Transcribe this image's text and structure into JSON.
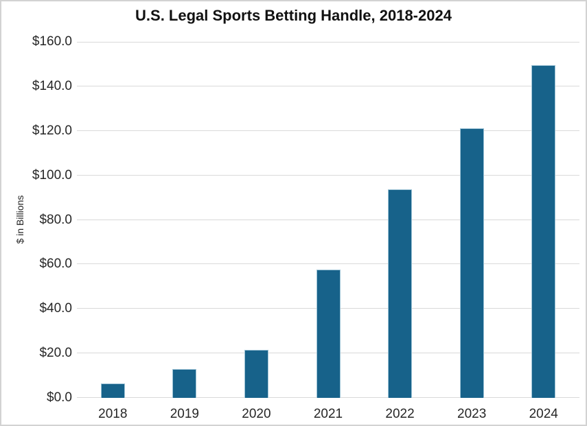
{
  "chart_data": {
    "type": "bar",
    "title": "U.S. Legal Sports Betting Handle, 2018-2024",
    "categories": [
      "2018",
      "2019",
      "2020",
      "2021",
      "2022",
      "2023",
      "2024"
    ],
    "values": [
      6.6,
      13.0,
      21.5,
      57.5,
      93.8,
      121.1,
      149.6
    ],
    "xlabel": "",
    "ylabel": "$ in Billions",
    "ylim": [
      0,
      160
    ],
    "ytick_interval": 20,
    "ytick_labels": [
      "$0.0",
      "$20.0",
      "$40.0",
      "$60.0",
      "$80.0",
      "$100.0",
      "$120.0",
      "$140.0",
      "$160.0"
    ],
    "grid": true,
    "legend": "none",
    "colors": {
      "bar_fill": "#17628A",
      "bar_edge": "#9DC3D6",
      "gridline": "#D9D9D9",
      "axis_line": "#D9D9D9",
      "tick_text": "#262626",
      "title_text": "#111111",
      "frame_border": "#D2D2D2",
      "background": "#FFFFFF"
    }
  }
}
